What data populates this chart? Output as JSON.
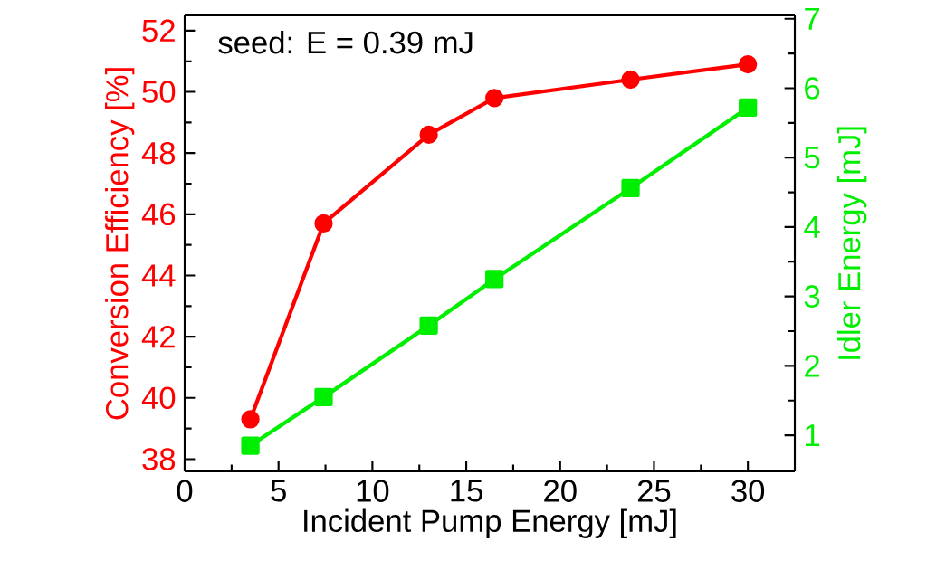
{
  "chart_data": {
    "type": "line",
    "xlabel": "Incident Pump Energy [mJ]",
    "ylabel": "Conversion Efficiency [%]",
    "y2label": "Idler Energy [mJ]",
    "annotations": [
      "seed: E = 0.39 mJ"
    ],
    "xlim": [
      0,
      32.5
    ],
    "xticks": [
      0,
      5,
      10,
      15,
      20,
      25,
      30
    ],
    "ylim": [
      37.6,
      52.5
    ],
    "yticks": [
      38,
      40,
      42,
      44,
      46,
      48,
      50,
      52
    ],
    "y2lim": [
      0.48,
      7.05
    ],
    "y2ticks": [
      1,
      2,
      3,
      4,
      5,
      6,
      7
    ],
    "series": [
      {
        "color": "#ff0000",
        "marker": "circle",
        "x": [
          3.5,
          7.4,
          13.0,
          16.5,
          23.75,
          30.0
        ],
        "values": [
          39.3,
          45.7,
          48.6,
          49.8,
          50.4,
          50.9
        ]
      },
      {
        "color": "#00ee00",
        "marker": "square",
        "axis": "y2",
        "x": [
          3.5,
          7.4,
          13.0,
          16.5,
          23.75,
          30.0
        ],
        "values": [
          0.85,
          1.55,
          2.58,
          3.25,
          4.56,
          5.72
        ]
      }
    ],
    "grid": false,
    "line_style": "solid"
  }
}
